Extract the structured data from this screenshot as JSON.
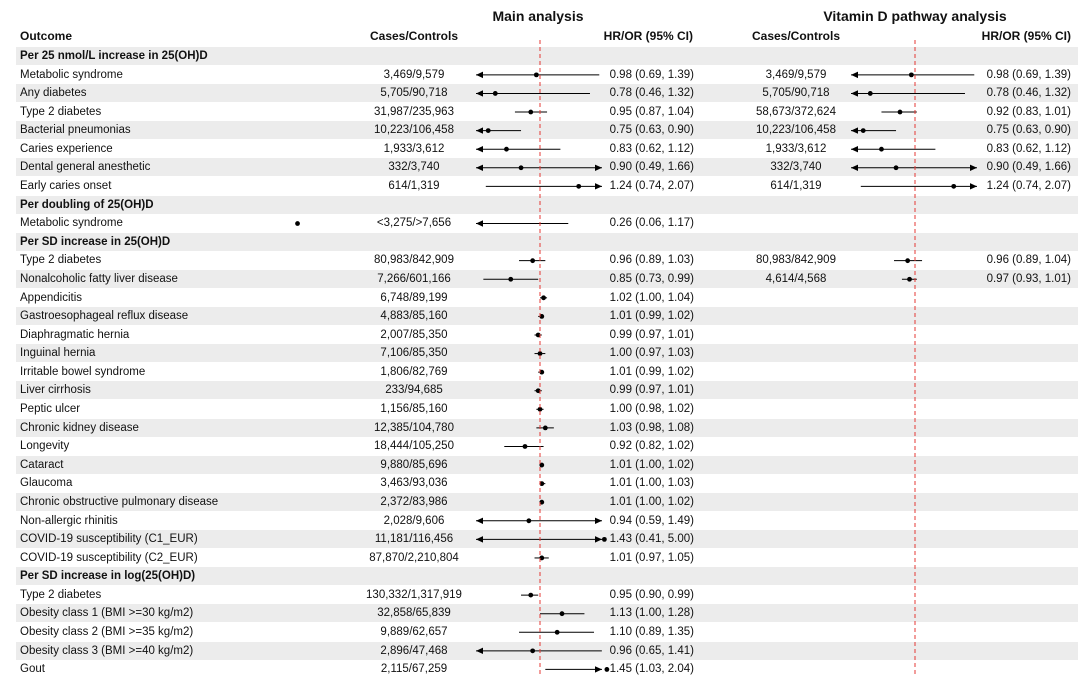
{
  "titles": {
    "main": "Main analysis",
    "vitd": "Vitamin D pathway analysis"
  },
  "headers": {
    "outcome": "Outcome",
    "cases_main": "Cases/Controls",
    "hr_main": "HR/OR (95% CI)",
    "cases_vitd": "Cases/Controls",
    "hr_vitd": "HR/OR (95% CI)"
  },
  "colors": {
    "reference_line": "#e53935",
    "band": "#ececec",
    "marker": "#000000"
  },
  "chart_data": {
    "type": "forest",
    "reference_value": 1.0,
    "reference_line": "dashed red",
    "groups": [
      {
        "label": "Per 25 nmol/L increase in 25(OH)D",
        "rows": [
          {
            "outcome": "Metabolic syndrome",
            "cases_main": "3,469/9,579",
            "hr_main_text": "0.98 (0.69, 1.39)",
            "main": [
              0.98,
              0.69,
              1.39
            ],
            "cases_vitd": "3,469/9,579",
            "hr_vitd_text": "0.98 (0.69, 1.39)",
            "vitd": [
              0.98,
              0.69,
              1.39
            ]
          },
          {
            "outcome": "Any diabetes",
            "cases_main": "5,705/90,718",
            "hr_main_text": "0.78 (0.46, 1.32)",
            "main": [
              0.78,
              0.46,
              1.32
            ],
            "cases_vitd": "5,705/90,718",
            "hr_vitd_text": "0.78 (0.46, 1.32)",
            "vitd": [
              0.78,
              0.46,
              1.32
            ]
          },
          {
            "outcome": "Type 2 diabetes",
            "cases_main": "31,987/235,963",
            "hr_main_text": "0.95 (0.87, 1.04)",
            "main": [
              0.95,
              0.87,
              1.04
            ],
            "cases_vitd": "58,673/372,624",
            "hr_vitd_text": "0.92 (0.83, 1.01)",
            "vitd": [
              0.92,
              0.83,
              1.01
            ]
          },
          {
            "outcome": "Bacterial pneumonias",
            "cases_main": "10,223/106,458",
            "hr_main_text": "0.75 (0.63, 0.90)",
            "main": [
              0.75,
              0.63,
              0.9
            ],
            "cases_vitd": "10,223/106,458",
            "hr_vitd_text": "0.75 (0.63, 0.90)",
            "vitd": [
              0.75,
              0.63,
              0.9
            ]
          },
          {
            "outcome": "Caries experience",
            "cases_main": "1,933/3,612",
            "hr_main_text": "0.83 (0.62, 1.12)",
            "main": [
              0.83,
              0.62,
              1.12
            ],
            "cases_vitd": "1,933/3,612",
            "hr_vitd_text": "0.83 (0.62, 1.12)",
            "vitd": [
              0.83,
              0.62,
              1.12
            ]
          },
          {
            "outcome": "Dental general anesthetic",
            "cases_main": "332/3,740",
            "hr_main_text": "0.90 (0.49, 1.66)",
            "main": [
              0.9,
              0.49,
              1.66
            ],
            "cases_vitd": "332/3,740",
            "hr_vitd_text": "0.90 (0.49, 1.66)",
            "vitd": [
              0.9,
              0.49,
              1.66
            ]
          },
          {
            "outcome": "Early caries onset",
            "cases_main": "614/1,319",
            "hr_main_text": "1.24 (0.74, 2.07)",
            "main": [
              1.24,
              0.74,
              2.07
            ],
            "cases_vitd": "614/1,319",
            "hr_vitd_text": "1.24 (0.74, 2.07)",
            "vitd": [
              1.24,
              0.74,
              2.07
            ]
          }
        ]
      },
      {
        "label": "Per doubling of 25(OH)D",
        "rows": [
          {
            "outcome": "Metabolic syndrome",
            "cases_main": "<3,275/>7,656",
            "hr_main_text": "0.26 (0.06, 1.17)",
            "main": [
              0.26,
              0.06,
              1.17
            ]
          }
        ]
      },
      {
        "label": "Per SD increase in 25(OH)D",
        "rows": [
          {
            "outcome": "Type 2 diabetes",
            "cases_main": "80,983/842,909",
            "hr_main_text": "0.96 (0.89, 1.03)",
            "main": [
              0.96,
              0.89,
              1.03
            ],
            "cases_vitd": "80,983/842,909",
            "hr_vitd_text": "0.96 (0.89, 1.04)",
            "vitd": [
              0.96,
              0.89,
              1.04
            ]
          },
          {
            "outcome": "Nonalcoholic fatty liver disease",
            "cases_main": "7,266/601,166",
            "hr_main_text": "0.85 (0.73, 0.99)",
            "main": [
              0.85,
              0.73,
              0.99
            ],
            "cases_vitd": "4,614/4,568",
            "hr_vitd_text": "0.97 (0.93, 1.01)",
            "vitd": [
              0.97,
              0.93,
              1.01
            ]
          },
          {
            "outcome": "Appendicitis",
            "cases_main": "6,748/89,199",
            "hr_main_text": "1.02 (1.00, 1.04)",
            "main": [
              1.02,
              1.0,
              1.04
            ]
          },
          {
            "outcome": "Gastroesophageal reflux disease",
            "cases_main": "4,883/85,160",
            "hr_main_text": "1.01 (0.99, 1.02)",
            "main": [
              1.01,
              0.99,
              1.02
            ]
          },
          {
            "outcome": "Diaphragmatic hernia",
            "cases_main": "2,007/85,350",
            "hr_main_text": "0.99 (0.97, 1.01)",
            "main": [
              0.99,
              0.97,
              1.01
            ]
          },
          {
            "outcome": "Inguinal hernia",
            "cases_main": "7,106/85,350",
            "hr_main_text": "1.00 (0.97, 1.03)",
            "main": [
              1.0,
              0.97,
              1.03
            ]
          },
          {
            "outcome": "Irritable bowel syndrome",
            "cases_main": "1,806/82,769",
            "hr_main_text": "1.01 (0.99, 1.02)",
            "main": [
              1.01,
              0.99,
              1.02
            ]
          },
          {
            "outcome": "Liver cirrhosis",
            "cases_main": "233/94,685",
            "hr_main_text": "0.99 (0.97, 1.01)",
            "main": [
              0.99,
              0.97,
              1.01
            ]
          },
          {
            "outcome": "Peptic ulcer",
            "cases_main": "1,156/85,160",
            "hr_main_text": "1.00 (0.98, 1.02)",
            "main": [
              1.0,
              0.98,
              1.02
            ]
          },
          {
            "outcome": "Chronic kidney disease",
            "cases_main": "12,385/104,780",
            "hr_main_text": "1.03 (0.98, 1.08)",
            "main": [
              1.03,
              0.98,
              1.08
            ]
          },
          {
            "outcome": "Longevity",
            "cases_main": "18,444/105,250",
            "hr_main_text": "0.92 (0.82, 1.02)",
            "main": [
              0.92,
              0.82,
              1.02
            ]
          },
          {
            "outcome": "Cataract",
            "cases_main": "9,880/85,696",
            "hr_main_text": "1.01 (1.00, 1.02)",
            "main": [
              1.01,
              1.0,
              1.02
            ]
          },
          {
            "outcome": "Glaucoma",
            "cases_main": "3,463/93,036",
            "hr_main_text": "1.01 (1.00, 1.03)",
            "main": [
              1.01,
              1.0,
              1.03
            ]
          },
          {
            "outcome": "Chronic obstructive pulmonary disease",
            "cases_main": "2,372/83,986",
            "hr_main_text": "1.01 (1.00, 1.02)",
            "main": [
              1.01,
              1.0,
              1.02
            ]
          },
          {
            "outcome": "Non-allergic rhinitis",
            "cases_main": "2,028/9,606",
            "hr_main_text": "0.94 (0.59, 1.49)",
            "main": [
              0.94,
              0.59,
              1.49
            ]
          },
          {
            "outcome": "COVID-19 susceptibility (C1_EUR)",
            "cases_main": "11,181/116,456",
            "hr_main_text": "1.43 (0.41, 5.00)",
            "main": [
              1.43,
              0.41,
              5.0
            ]
          },
          {
            "outcome": "COVID-19 susceptibility (C2_EUR)",
            "cases_main": "87,870/2,210,804",
            "hr_main_text": "1.01 (0.97, 1.05)",
            "main": [
              1.01,
              0.97,
              1.05
            ]
          }
        ]
      },
      {
        "label": "Per SD increase in log(25(OH)D)",
        "rows": [
          {
            "outcome": "Type 2 diabetes",
            "cases_main": "130,332/1,317,919",
            "hr_main_text": "0.95 (0.90, 0.99)",
            "main": [
              0.95,
              0.9,
              0.99
            ]
          },
          {
            "outcome": "Obesity class 1 (BMI >=30 kg/m2)",
            "cases_main": "32,858/65,839",
            "hr_main_text": "1.13 (1.00, 1.28)",
            "main": [
              1.13,
              1.0,
              1.28
            ]
          },
          {
            "outcome": "Obesity class 2 (BMI >=35 kg/m2)",
            "cases_main": "9,889/62,657",
            "hr_main_text": "1.10 (0.89, 1.35)",
            "main": [
              1.1,
              0.89,
              1.35
            ]
          },
          {
            "outcome": "Obesity class 3 (BMI >=40 kg/m2)",
            "cases_main": "2,896/47,468",
            "hr_main_text": "0.96 (0.65, 1.41)",
            "main": [
              0.96,
              0.65,
              1.41
            ]
          },
          {
            "outcome": "Gout",
            "cases_main": "2,115/67,259",
            "hr_main_text": "1.45 (1.03, 2.04)",
            "main": [
              1.45,
              1.03,
              2.04
            ]
          }
        ]
      }
    ]
  }
}
